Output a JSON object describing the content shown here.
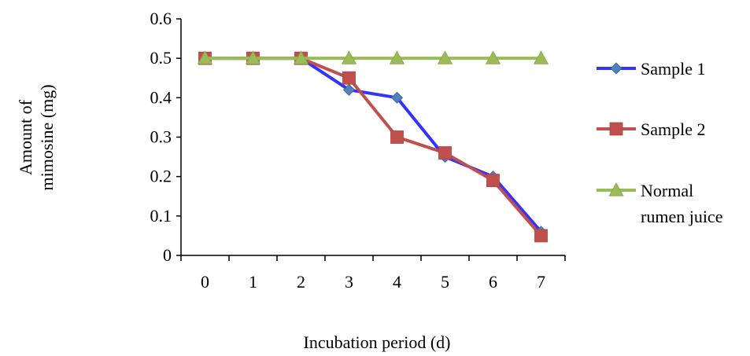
{
  "chart_data": {
    "type": "line",
    "title": "",
    "xlabel": "Incubation period (d)",
    "ylabel_lines": [
      "Amount of",
      "mimosine (mg)"
    ],
    "categories": [
      "0",
      "1",
      "2",
      "3",
      "4",
      "5",
      "6",
      "7"
    ],
    "ylim": [
      0,
      0.6
    ],
    "yticks": [
      "0",
      "0.1",
      "0.2",
      "0.3",
      "0.4",
      "0.5",
      "0.6"
    ],
    "grid": false,
    "legend_position": "right",
    "series": [
      {
        "name": "Sample 1",
        "name_lines": [
          "Sample 1"
        ],
        "color": "#3333FF",
        "marker": "diamond",
        "marker_color": "#4F81BD",
        "values": [
          0.5,
          0.5,
          0.5,
          0.42,
          0.4,
          0.25,
          0.2,
          0.06
        ]
      },
      {
        "name": "Sample 2",
        "name_lines": [
          "Sample 2"
        ],
        "color": "#C0504D",
        "marker": "square",
        "marker_color": "#C0504D",
        "values": [
          0.5,
          0.5,
          0.5,
          0.45,
          0.3,
          0.26,
          0.19,
          0.05
        ]
      },
      {
        "name": "Normal rumen juice",
        "name_lines": [
          "Normal",
          "rumen juice"
        ],
        "color": "#9BBB59",
        "marker": "triangle",
        "marker_color": "#9BBB59",
        "values": [
          0.5,
          0.5,
          0.5,
          0.5,
          0.5,
          0.5,
          0.5,
          0.5
        ]
      }
    ]
  }
}
